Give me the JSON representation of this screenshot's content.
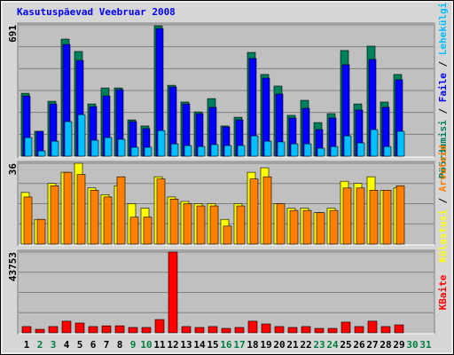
{
  "chart_data": [
    {
      "type": "bar",
      "title": "Kasutuspäevad Veebruar 2008",
      "ylim": [
        0,
        691
      ],
      "yticks": [
        691
      ],
      "grid_divisions": 6,
      "legend_separator": " / ",
      "series": [
        {
          "name": "Pöördumisi",
          "color": "#00805c",
          "values": [
            331,
            131,
            289,
            616,
            551,
            275,
            359,
            359,
            191,
            159,
            686,
            373,
            285,
            233,
            303,
            159,
            205,
            546,
            430,
            369,
            215,
            294,
            177,
            224,
            556,
            275,
            579,
            285,
            430,
            null,
            null
          ]
        },
        {
          "name": "Faile",
          "color": "#0000ff",
          "values": [
            317,
            131,
            275,
            588,
            504,
            261,
            317,
            350,
            182,
            145,
            672,
            364,
            275,
            224,
            257,
            154,
            191,
            514,
            411,
            327,
            201,
            252,
            140,
            201,
            481,
            243,
            509,
            257,
            402,
            null,
            null
          ]
        },
        {
          "name": "Lehekülgi",
          "color": "#00c0ff",
          "values": [
            98,
            28,
            79,
            182,
            219,
            84,
            98,
            89,
            47,
            47,
            135,
            65,
            56,
            51,
            61,
            56,
            56,
            107,
            79,
            75,
            65,
            65,
            42,
            51,
            107,
            70,
            140,
            51,
            131,
            null,
            null
          ]
        }
      ]
    },
    {
      "type": "bar",
      "ylim": [
        0,
        36
      ],
      "yticks": [
        36
      ],
      "grid_divisions": 4,
      "legend_separator": " / ",
      "series": [
        {
          "name": "Külastusi",
          "color": "#ffff00",
          "values": [
            23,
            11,
            27,
            32,
            36,
            25,
            22,
            26,
            18,
            16,
            30,
            21,
            19,
            18,
            18,
            11,
            18,
            32,
            34,
            18,
            16,
            16,
            14,
            16,
            28,
            27,
            30,
            24,
            25,
            null,
            null
          ]
        },
        {
          "name": "Arvuteid",
          "color": "#ff8000",
          "values": [
            21,
            11,
            26,
            32,
            31,
            24,
            21,
            30,
            12,
            12,
            29,
            20,
            18,
            17,
            17,
            8,
            17,
            29,
            30,
            18,
            15,
            15,
            14,
            15,
            25,
            25,
            24,
            24,
            26,
            null,
            null
          ]
        }
      ]
    },
    {
      "type": "bar",
      "ylim": [
        0,
        43753
      ],
      "yticks": [
        43753
      ],
      "grid_divisions": 4,
      "categories": [
        "1",
        "2",
        "3",
        "4",
        "5",
        "6",
        "7",
        "8",
        "9",
        "10",
        "11",
        "12",
        "13",
        "14",
        "15",
        "16",
        "17",
        "18",
        "19",
        "20",
        "21",
        "22",
        "23",
        "24",
        "25",
        "26",
        "27",
        "28",
        "29",
        "30",
        "31"
      ],
      "label_colors": [
        "#000000",
        "#008040",
        "#008040",
        "#000000",
        "#000000",
        "#000000",
        "#000000",
        "#000000",
        "#008040",
        "#008040",
        "#000000",
        "#000000",
        "#000000",
        "#000000",
        "#000000",
        "#008040",
        "#008040",
        "#000000",
        "#000000",
        "#000000",
        "#000000",
        "#000000",
        "#008040",
        "#008040",
        "#000000",
        "#000000",
        "#000000",
        "#000000",
        "#000000",
        "#008040",
        "#008040"
      ],
      "series": [
        {
          "name": "KBaite",
          "color": "#ff0000",
          "values": [
            3400,
            1900,
            3400,
            6300,
            5300,
            3400,
            3800,
            3800,
            2900,
            2900,
            7200,
            43753,
            3400,
            2900,
            3400,
            2400,
            2900,
            6300,
            4800,
            3400,
            2900,
            3400,
            2400,
            2400,
            5800,
            3400,
            6300,
            3400,
            4300,
            null,
            null
          ]
        }
      ]
    }
  ]
}
